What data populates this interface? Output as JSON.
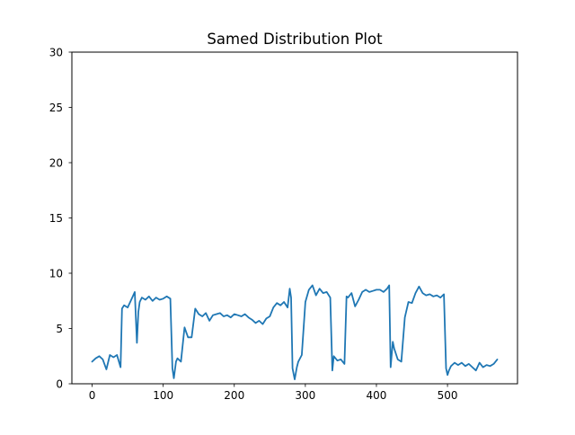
{
  "chart_data": {
    "type": "line",
    "title": "Samed Distribution Plot",
    "xlabel": "",
    "ylabel": "",
    "xlim": [
      -28.5,
      598.5
    ],
    "ylim": [
      0,
      30
    ],
    "xticks": [
      0,
      100,
      200,
      300,
      400,
      500
    ],
    "yticks": [
      0,
      5,
      10,
      15,
      20,
      25,
      30
    ],
    "grid": false,
    "line_color": "#1f77b4",
    "series": [
      {
        "x": [
          0,
          5,
          10,
          15,
          20,
          25,
          30,
          35,
          40,
          42,
          45,
          50,
          55,
          60,
          63,
          65,
          67,
          70,
          75,
          80,
          85,
          90,
          95,
          100,
          105,
          110,
          113,
          115,
          118,
          120,
          125,
          130,
          135,
          140,
          145,
          150,
          155,
          160,
          165,
          170,
          175,
          180,
          185,
          190,
          195,
          200,
          205,
          210,
          215,
          220,
          225,
          230,
          235,
          240,
          245,
          250,
          255,
          260,
          265,
          270,
          275,
          278,
          280,
          282,
          285,
          288,
          290,
          295,
          300,
          305,
          310,
          315,
          320,
          325,
          330,
          335,
          338,
          340,
          345,
          350,
          355,
          358,
          360,
          365,
          370,
          375,
          380,
          385,
          390,
          395,
          400,
          405,
          410,
          415,
          418,
          420,
          423,
          425,
          430,
          435,
          440,
          445,
          450,
          455,
          460,
          465,
          470,
          475,
          480,
          485,
          490,
          495,
          498,
          500,
          502,
          505,
          510,
          515,
          520,
          525,
          530,
          535,
          540,
          545,
          550,
          555,
          560,
          565,
          570
        ],
        "y": [
          2.0,
          2.3,
          2.5,
          2.2,
          1.3,
          2.6,
          2.4,
          2.6,
          1.5,
          6.8,
          7.1,
          6.9,
          7.6,
          8.3,
          3.7,
          6.5,
          7.4,
          7.8,
          7.6,
          7.9,
          7.5,
          7.8,
          7.6,
          7.7,
          7.9,
          7.7,
          1.4,
          0.5,
          2.0,
          2.3,
          2.0,
          5.1,
          4.2,
          4.2,
          6.8,
          6.3,
          6.1,
          6.4,
          5.7,
          6.2,
          6.3,
          6.4,
          6.1,
          6.2,
          6.0,
          6.3,
          6.2,
          6.1,
          6.3,
          6.0,
          5.8,
          5.5,
          5.7,
          5.4,
          5.9,
          6.1,
          6.9,
          7.3,
          7.1,
          7.4,
          6.9,
          8.6,
          7.8,
          1.4,
          0.4,
          1.5,
          2.0,
          2.6,
          7.4,
          8.5,
          8.9,
          8.0,
          8.6,
          8.2,
          8.3,
          7.8,
          1.2,
          2.5,
          2.1,
          2.2,
          1.8,
          7.9,
          7.8,
          8.2,
          7.0,
          7.6,
          8.3,
          8.5,
          8.3,
          8.4,
          8.5,
          8.5,
          8.3,
          8.6,
          8.9,
          1.5,
          3.8,
          3.2,
          2.2,
          2.0,
          6.0,
          7.4,
          7.3,
          8.2,
          8.8,
          8.2,
          8.0,
          8.1,
          7.9,
          8.0,
          7.8,
          8.1,
          1.4,
          0.8,
          1.2,
          1.6,
          1.9,
          1.7,
          1.9,
          1.6,
          1.8,
          1.5,
          1.2,
          1.9,
          1.5,
          1.7,
          1.6,
          1.8,
          2.2
        ]
      }
    ]
  }
}
